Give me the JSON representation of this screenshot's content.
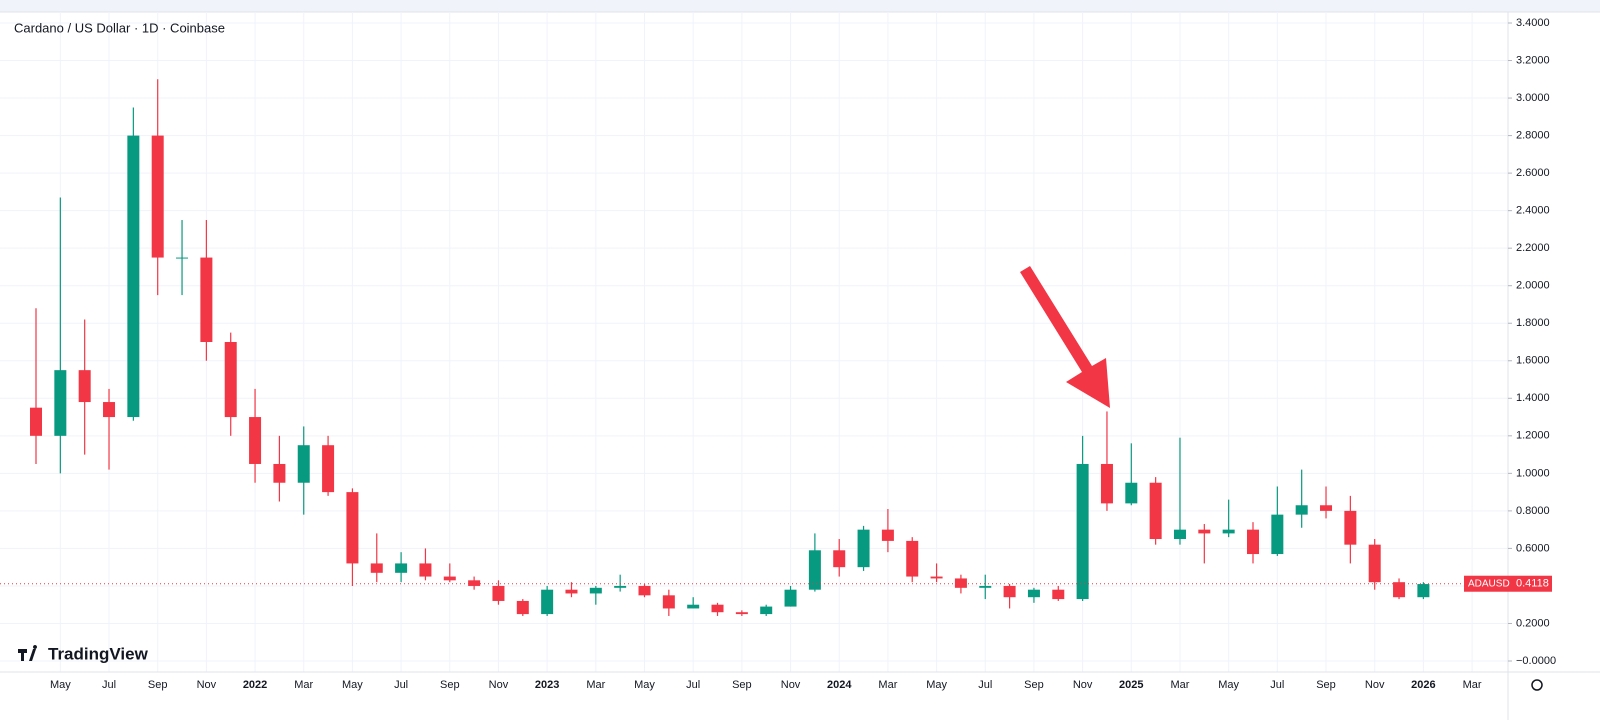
{
  "chart_data": {
    "type": "candlestick",
    "title": "Cardano / US Dollar · 1D · Coinbase",
    "brand": "TradingView",
    "categories": [
      null,
      "May",
      null,
      "Jul",
      null,
      "Sep",
      null,
      "Nov",
      null,
      "2022",
      null,
      "Mar",
      null,
      "May",
      null,
      "Jul",
      null,
      "Sep",
      null,
      "Nov",
      null,
      "2023",
      null,
      "Mar",
      null,
      "May",
      null,
      "Jul",
      null,
      "Sep",
      null,
      "Nov",
      null,
      "2024",
      null,
      "Mar",
      null,
      "May",
      null,
      "Jul",
      null,
      "Sep",
      null,
      "Nov",
      null,
      "2025",
      null,
      "Mar",
      null,
      "May",
      null,
      "Jul",
      null,
      "Sep",
      null,
      "Nov",
      null,
      "2026",
      null,
      "Mar"
    ],
    "open": [
      1.35,
      1.2,
      1.55,
      1.38,
      1.3,
      2.8,
      2.15,
      2.15,
      1.7,
      1.3,
      1.05,
      0.95,
      1.15,
      0.9,
      0.52,
      0.47,
      0.52,
      0.45,
      0.43,
      0.4,
      0.32,
      0.25,
      0.38,
      0.36,
      0.39,
      0.4,
      0.35,
      0.28,
      0.3,
      0.26,
      0.25,
      0.29,
      0.38,
      0.59,
      0.5,
      0.7,
      0.64,
      0.45,
      0.44,
      0.39,
      0.4,
      0.34,
      0.38,
      0.33,
      1.05,
      0.84,
      0.95,
      0.65,
      0.7,
      0.68,
      0.7,
      0.57,
      0.78,
      0.83,
      0.8,
      0.62,
      0.42,
      0.34,
      null,
      null
    ],
    "high": [
      1.88,
      2.47,
      1.82,
      1.45,
      2.95,
      3.1,
      2.35,
      2.35,
      1.75,
      1.45,
      1.2,
      1.25,
      1.2,
      0.92,
      0.68,
      0.58,
      0.6,
      0.52,
      0.45,
      0.43,
      0.33,
      0.4,
      0.42,
      0.4,
      0.46,
      0.41,
      0.38,
      0.34,
      0.31,
      0.27,
      0.3,
      0.4,
      0.68,
      0.65,
      0.72,
      0.81,
      0.66,
      0.52,
      0.46,
      0.46,
      0.41,
      0.39,
      0.4,
      1.2,
      1.33,
      1.16,
      0.98,
      1.19,
      0.73,
      0.86,
      0.74,
      0.93,
      1.02,
      0.93,
      0.88,
      0.65,
      0.44,
      0.42,
      null,
      null
    ],
    "low": [
      1.05,
      1.0,
      1.1,
      1.02,
      1.28,
      1.95,
      1.95,
      1.6,
      1.2,
      0.95,
      0.85,
      0.78,
      0.88,
      0.4,
      0.42,
      0.42,
      0.43,
      0.42,
      0.38,
      0.3,
      0.24,
      0.24,
      0.34,
      0.3,
      0.37,
      0.34,
      0.24,
      0.28,
      0.24,
      0.24,
      0.24,
      0.29,
      0.37,
      0.45,
      0.48,
      0.58,
      0.42,
      0.42,
      0.36,
      0.33,
      0.28,
      0.31,
      0.32,
      0.32,
      0.8,
      0.83,
      0.62,
      0.62,
      0.52,
      0.66,
      0.52,
      0.56,
      0.71,
      0.76,
      0.52,
      0.38,
      0.33,
      0.33,
      null,
      null
    ],
    "close": [
      1.2,
      1.55,
      1.38,
      1.3,
      2.8,
      2.15,
      2.15,
      1.7,
      1.3,
      1.05,
      0.95,
      1.15,
      0.9,
      0.52,
      0.47,
      0.52,
      0.45,
      0.43,
      0.4,
      0.32,
      0.25,
      0.38,
      0.36,
      0.39,
      0.4,
      0.35,
      0.28,
      0.3,
      0.26,
      0.25,
      0.29,
      0.38,
      0.59,
      0.5,
      0.7,
      0.64,
      0.45,
      0.44,
      0.39,
      0.4,
      0.34,
      0.38,
      0.33,
      1.05,
      0.84,
      0.95,
      0.65,
      0.7,
      0.68,
      0.7,
      0.57,
      0.78,
      0.83,
      0.8,
      0.62,
      0.42,
      0.34,
      0.41,
      null,
      null
    ],
    "up_color": "#089981",
    "down_color": "#f23645",
    "ylim": [
      0,
      3.4
    ],
    "yticks": [
      {
        "value": 0,
        "label": "−0.0000"
      },
      {
        "value": 0.2,
        "label": "0.2000"
      },
      {
        "value": 0.4,
        "label": "0.4000"
      },
      {
        "value": 0.6,
        "label": "0.6000"
      },
      {
        "value": 0.8,
        "label": "0.8000"
      },
      {
        "value": 1,
        "label": "1.0000"
      },
      {
        "value": 1.2,
        "label": "1.2000"
      },
      {
        "value": 1.4,
        "label": "1.4000"
      },
      {
        "value": 1.6,
        "label": "1.6000"
      },
      {
        "value": 1.8,
        "label": "1.8000"
      },
      {
        "value": 2,
        "label": "2.0000"
      },
      {
        "value": 2.2,
        "label": "2.2000"
      },
      {
        "value": 2.4,
        "label": "2.4000"
      },
      {
        "value": 2.6,
        "label": "2.6000"
      },
      {
        "value": 2.8,
        "label": "2.8000"
      },
      {
        "value": 3,
        "label": "3.0000"
      },
      {
        "value": 3.2,
        "label": "3.2000"
      },
      {
        "value": 3.4,
        "label": "3.4000"
      }
    ],
    "grid": true,
    "price_tag": {
      "symbol": "ADAUSD",
      "last_price": 0.4118
    }
  }
}
